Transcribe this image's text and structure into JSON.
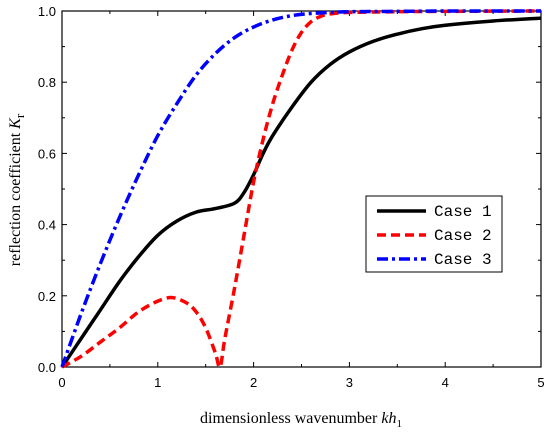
{
  "chart_data": {
    "type": "line",
    "xlabel": "dimensionless wavenumber kh1",
    "xlabel_parts": {
      "main": "dimensionless wavenumber ",
      "var": "kh",
      "sub": "1"
    },
    "ylabel": "reflection coefficient Kr",
    "ylabel_parts": {
      "main": "reflection coefficient ",
      "var": "K",
      "sub": "r"
    },
    "xlim": [
      0,
      5
    ],
    "ylim": [
      0,
      1.0
    ],
    "x_ticks": [
      "0",
      "1",
      "2",
      "3",
      "4",
      "5"
    ],
    "y_ticks": [
      "0.0",
      "0.2",
      "0.4",
      "0.6",
      "0.8",
      "1.0"
    ],
    "x_tick_values": [
      0,
      1,
      2,
      3,
      4,
      5
    ],
    "y_tick_values": [
      0,
      0.2,
      0.4,
      0.6,
      0.8,
      1.0
    ],
    "grid": false,
    "legend_position": "center-right",
    "series": [
      {
        "name": "Case 1",
        "color": "#000000",
        "style": "solid",
        "x": [
          0,
          0.2,
          0.4,
          0.6,
          0.8,
          1.0,
          1.2,
          1.4,
          1.6,
          1.8,
          1.9,
          2.0,
          2.1,
          2.2,
          2.4,
          2.6,
          2.8,
          3.0,
          3.25,
          3.5,
          3.75,
          4.0,
          4.5,
          5.0
        ],
        "y": [
          0,
          0.08,
          0.16,
          0.24,
          0.31,
          0.37,
          0.41,
          0.435,
          0.445,
          0.46,
          0.49,
          0.54,
          0.6,
          0.65,
          0.73,
          0.8,
          0.85,
          0.885,
          0.915,
          0.935,
          0.95,
          0.96,
          0.972,
          0.98
        ]
      },
      {
        "name": "Case 2",
        "color": "#ff0000",
        "style": "dash",
        "x": [
          0,
          0.2,
          0.4,
          0.6,
          0.8,
          1.0,
          1.15,
          1.3,
          1.4,
          1.5,
          1.6,
          1.65,
          1.7,
          1.8,
          1.9,
          2.0,
          2.1,
          2.2,
          2.3,
          2.4,
          2.5,
          2.6,
          2.7,
          2.8,
          3.0,
          3.5,
          4.0,
          5.0
        ],
        "y": [
          0,
          0.03,
          0.07,
          0.11,
          0.155,
          0.185,
          0.195,
          0.18,
          0.155,
          0.11,
          0.04,
          0.0,
          0.08,
          0.22,
          0.37,
          0.52,
          0.64,
          0.74,
          0.82,
          0.89,
          0.94,
          0.97,
          0.985,
          0.992,
          0.996,
          0.998,
          0.999,
          1.0
        ]
      },
      {
        "name": "Case 3",
        "color": "#0000ff",
        "style": "dashdot",
        "x": [
          0,
          0.2,
          0.4,
          0.6,
          0.8,
          1.0,
          1.2,
          1.4,
          1.6,
          1.8,
          2.0,
          2.2,
          2.4,
          2.6,
          2.8,
          3.0,
          3.5,
          4.0,
          5.0
        ],
        "y": [
          0,
          0.15,
          0.29,
          0.42,
          0.54,
          0.65,
          0.74,
          0.82,
          0.88,
          0.925,
          0.955,
          0.975,
          0.987,
          0.993,
          0.996,
          0.998,
          0.999,
          1.0,
          1.0
        ]
      }
    ]
  }
}
